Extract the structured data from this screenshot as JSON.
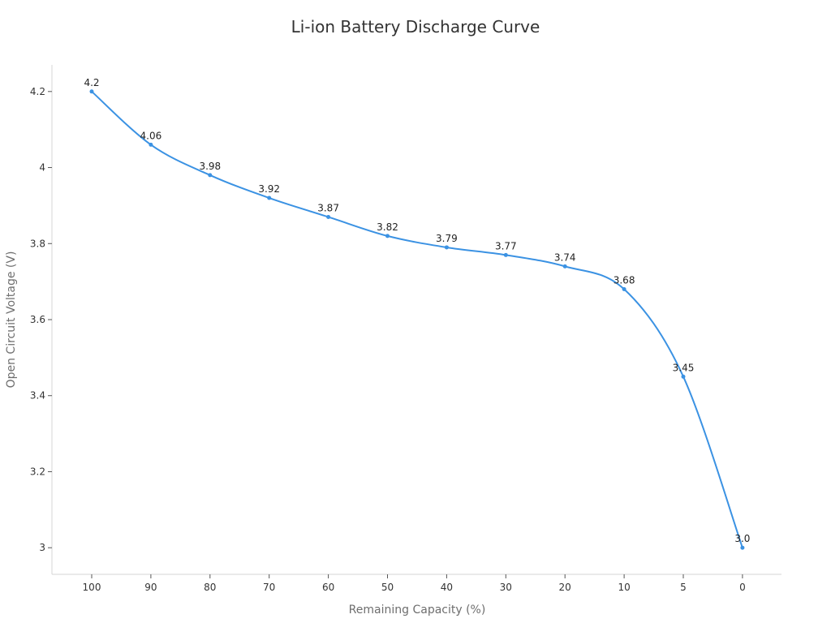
{
  "chart_data": {
    "type": "line",
    "title": "Li-ion Battery Discharge Curve",
    "xlabel": "Remaining Capacity (%)",
    "ylabel": "Open Circuit Voltage (V)",
    "categories": [
      "100",
      "90",
      "80",
      "70",
      "60",
      "50",
      "40",
      "30",
      "20",
      "10",
      "5",
      "0"
    ],
    "series": [
      {
        "values": [
          4.2,
          4.06,
          3.98,
          3.92,
          3.87,
          3.82,
          3.79,
          3.77,
          3.74,
          3.68,
          3.45,
          3.0
        ],
        "labels": [
          "4.2",
          "4.06",
          "3.98",
          "3.92",
          "3.87",
          "3.82",
          "3.79",
          "3.77",
          "3.74",
          "3.68",
          "3.45",
          "3.0"
        ],
        "color": "#3b92e3"
      }
    ],
    "ylim": [
      2.93,
      4.27
    ],
    "yticks": [
      3,
      3.2,
      3.4,
      3.6,
      3.8,
      4,
      4.2
    ],
    "ytick_labels": [
      "3",
      "3.2",
      "3.4",
      "3.6",
      "3.8",
      "4",
      "4.2"
    ],
    "grid": false,
    "smooth": true
  }
}
